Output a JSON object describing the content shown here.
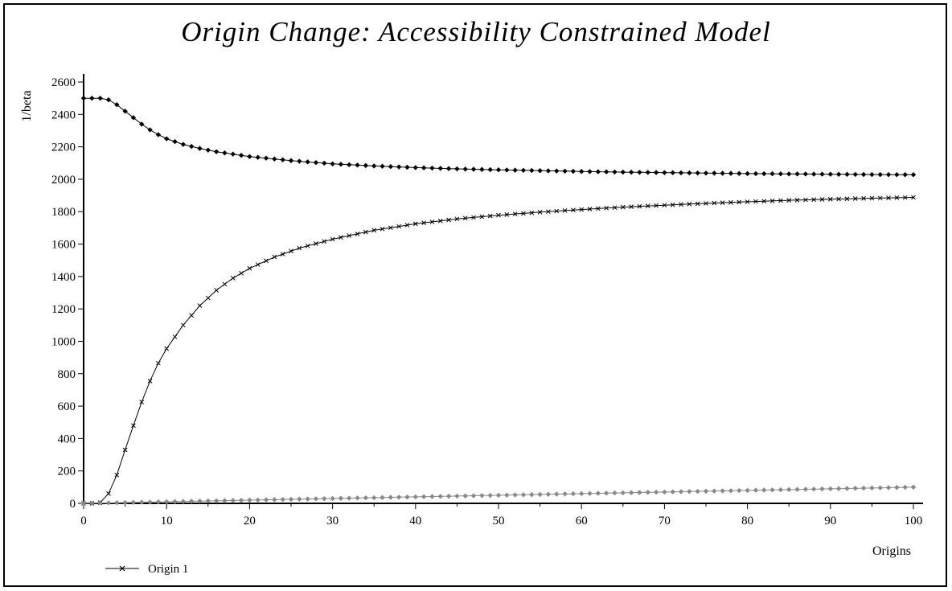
{
  "chart_data": {
    "type": "line",
    "title": "Origin Change: Accessibility Constrained Model",
    "xlabel": "Origins",
    "ylabel": "1/beta",
    "xlim": [
      0,
      100
    ],
    "ylim": [
      0,
      2600
    ],
    "x_ticks": [
      0,
      10,
      20,
      30,
      40,
      50,
      60,
      70,
      80,
      90,
      100
    ],
    "y_ticks": [
      0,
      200,
      400,
      600,
      800,
      1000,
      1200,
      1400,
      1600,
      1800,
      2000,
      2200,
      2400,
      2600
    ],
    "legend": {
      "position": "bottom-left",
      "entries": [
        "Origin 1"
      ]
    },
    "grid": false,
    "series": [
      {
        "name": "Origin 1",
        "marker": "x",
        "color": "#000000",
        "points": [
          [
            0,
            0
          ],
          [
            1,
            0
          ],
          [
            2,
            5
          ],
          [
            3,
            60
          ],
          [
            4,
            175
          ],
          [
            5,
            330
          ],
          [
            6,
            480
          ],
          [
            7,
            625
          ],
          [
            8,
            755
          ],
          [
            9,
            865
          ],
          [
            10,
            955
          ],
          [
            12,
            1100
          ],
          [
            14,
            1220
          ],
          [
            16,
            1315
          ],
          [
            18,
            1390
          ],
          [
            20,
            1450
          ],
          [
            23,
            1520
          ],
          [
            26,
            1575
          ],
          [
            30,
            1630
          ],
          [
            35,
            1685
          ],
          [
            40,
            1725
          ],
          [
            45,
            1755
          ],
          [
            50,
            1778
          ],
          [
            55,
            1797
          ],
          [
            60,
            1813
          ],
          [
            65,
            1828
          ],
          [
            70,
            1840
          ],
          [
            75,
            1851
          ],
          [
            80,
            1861
          ],
          [
            85,
            1870
          ],
          [
            90,
            1877
          ],
          [
            95,
            1883
          ],
          [
            100,
            1888
          ]
        ]
      },
      {
        "marker": "diamond",
        "color": "#000000",
        "points": [
          [
            0,
            2500
          ],
          [
            1,
            2500
          ],
          [
            2,
            2500
          ],
          [
            3,
            2490
          ],
          [
            4,
            2460
          ],
          [
            5,
            2420
          ],
          [
            6,
            2380
          ],
          [
            7,
            2340
          ],
          [
            8,
            2305
          ],
          [
            9,
            2275
          ],
          [
            10,
            2250
          ],
          [
            12,
            2215
          ],
          [
            14,
            2190
          ],
          [
            16,
            2170
          ],
          [
            18,
            2155
          ],
          [
            20,
            2140
          ],
          [
            25,
            2115
          ],
          [
            30,
            2095
          ],
          [
            35,
            2082
          ],
          [
            40,
            2072
          ],
          [
            45,
            2064
          ],
          [
            50,
            2058
          ],
          [
            55,
            2053
          ],
          [
            60,
            2048
          ],
          [
            65,
            2044
          ],
          [
            70,
            2041
          ],
          [
            75,
            2038
          ],
          [
            80,
            2035
          ],
          [
            85,
            2033
          ],
          [
            90,
            2031
          ],
          [
            95,
            2029
          ],
          [
            100,
            2028
          ]
        ]
      },
      {
        "marker": "diamond",
        "color": "#888888",
        "points": [
          [
            0,
            0
          ],
          [
            100,
            100
          ]
        ]
      }
    ]
  }
}
